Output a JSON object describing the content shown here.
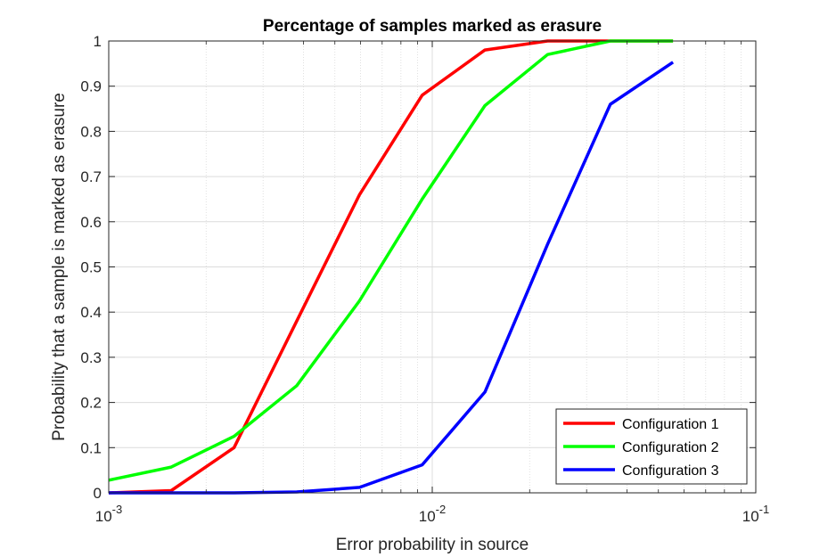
{
  "chart_data": {
    "type": "line",
    "title": "Percentage of samples marked as erasure",
    "xlabel": "Error probability in source",
    "ylabel": "Probability that a sample is marked as erasure",
    "xscale": "log",
    "xlim": [
      0.001,
      0.1
    ],
    "ylim": [
      0,
      1
    ],
    "xticks": [
      {
        "value": 0.001,
        "base": "10",
        "exp": "-3"
      },
      {
        "value": 0.01,
        "base": "10",
        "exp": "-2"
      },
      {
        "value": 0.1,
        "base": "10",
        "exp": "-1"
      }
    ],
    "yticks": [
      {
        "value": 0,
        "label": "0"
      },
      {
        "value": 0.1,
        "label": "0.1"
      },
      {
        "value": 0.2,
        "label": "0.2"
      },
      {
        "value": 0.3,
        "label": "0.3"
      },
      {
        "value": 0.4,
        "label": "0.4"
      },
      {
        "value": 0.5,
        "label": "0.5"
      },
      {
        "value": 0.6,
        "label": "0.6"
      },
      {
        "value": 0.7,
        "label": "0.7"
      },
      {
        "value": 0.8,
        "label": "0.8"
      },
      {
        "value": 0.9,
        "label": "0.9"
      },
      {
        "value": 1,
        "label": "1"
      }
    ],
    "grid": true,
    "minor_grid": true,
    "legend_position": "bottom-right",
    "series": [
      {
        "name": "Configuration 1",
        "color": "#ff0000",
        "points": [
          [
            0.001,
            0.0
          ],
          [
            0.00156,
            0.005
          ],
          [
            0.00244,
            0.1
          ],
          [
            0.00381,
            0.38
          ],
          [
            0.00596,
            0.66
          ],
          [
            0.00931,
            0.88
          ],
          [
            0.01455,
            0.98
          ],
          [
            0.02273,
            1.0
          ],
          [
            0.03551,
            1.0
          ],
          [
            0.05549,
            1.0
          ]
        ]
      },
      {
        "name": "Configuration 2",
        "color": "#00ff00",
        "points": [
          [
            0.001,
            0.028
          ],
          [
            0.00156,
            0.057
          ],
          [
            0.00244,
            0.125
          ],
          [
            0.00381,
            0.237
          ],
          [
            0.00596,
            0.425
          ],
          [
            0.00931,
            0.65
          ],
          [
            0.01455,
            0.857
          ],
          [
            0.02273,
            0.97
          ],
          [
            0.03551,
            1.0
          ],
          [
            0.05549,
            1.0
          ]
        ]
      },
      {
        "name": "Configuration 3",
        "color": "#0000ff",
        "points": [
          [
            0.001,
            0.0
          ],
          [
            0.00156,
            0.0
          ],
          [
            0.00244,
            0.0
          ],
          [
            0.00381,
            0.002
          ],
          [
            0.00596,
            0.012
          ],
          [
            0.00931,
            0.062
          ],
          [
            0.01455,
            0.223
          ],
          [
            0.02273,
            0.55
          ],
          [
            0.03551,
            0.86
          ],
          [
            0.05549,
            0.953
          ]
        ]
      }
    ]
  }
}
